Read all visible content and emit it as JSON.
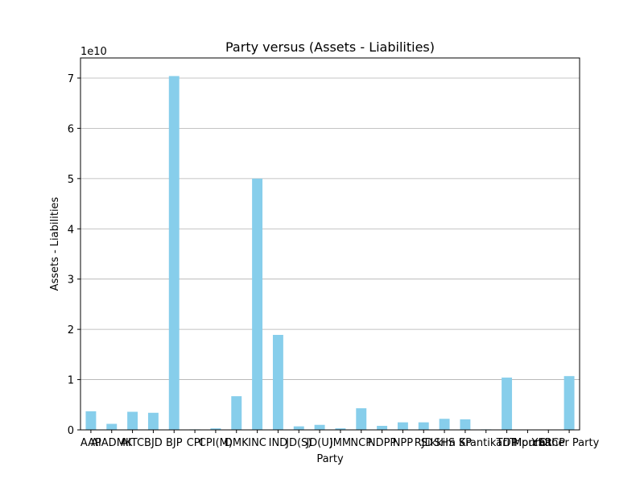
{
  "chart_data": {
    "type": "bar",
    "title": "Party versus (Assets - Liabilities)",
    "xlabel": "Party",
    "ylabel": "Assets - Liabilities",
    "y_exponent_label": "1e10",
    "ylim": [
      0,
      7.4
    ],
    "y_ticks": [
      "0",
      "1",
      "2",
      "3",
      "4",
      "5",
      "6",
      "7"
    ],
    "grid": "y",
    "bar_color": "#87CEEB",
    "categories": [
      "AAP",
      "AIADMK",
      "AITC",
      "BJD",
      "BJP",
      "CPI",
      "CPI(M)",
      "DMK",
      "INC",
      "IND",
      "JD(S)",
      "JD(U)",
      "JMM",
      "NCP",
      "NDPP",
      "NPP",
      "RJD",
      "SHS",
      "SP",
      "Sikkim Krantikari Morcha",
      "TDP",
      "Tripura",
      "YSRCP",
      "Others"
    ],
    "category_labels": [
      "AAP",
      "AIADMK",
      "AITC",
      "BJD",
      "BJP",
      "CPI",
      "CPI(M)",
      "DMK",
      "INC",
      "IND",
      "JD(S)",
      "JD(U)",
      "JMM",
      "NCP",
      "NDPP",
      "NPP",
      "RJD",
      "SHS",
      "SP",
      "Sikkim Krantikari Morcha",
      "TDP",
      "Tripura",
      "YSRCP",
      "Other Party"
    ],
    "values": [
      0.37,
      0.12,
      0.36,
      0.34,
      7.04,
      0.01,
      0.03,
      0.67,
      5.0,
      1.89,
      0.07,
      0.1,
      0.03,
      0.43,
      0.08,
      0.15,
      0.15,
      0.22,
      0.21,
      0.01,
      1.04,
      0.0,
      0.0,
      1.07
    ]
  }
}
